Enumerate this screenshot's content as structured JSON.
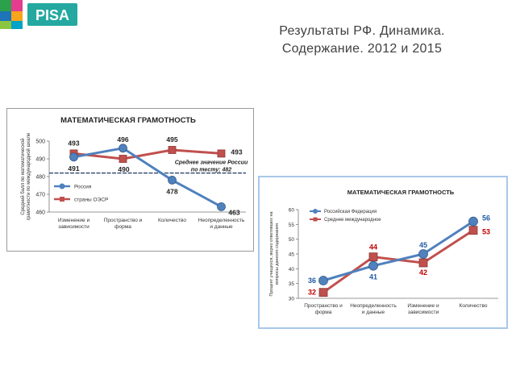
{
  "slide": {
    "title_line1": "Результаты РФ. Динамика.",
    "title_line2": "Содержание. 2012 и 2015",
    "logo_text": "PISA"
  },
  "colors": {
    "blue": "#4f81bd",
    "red": "#c0504d",
    "blue_dark": "#1f5aa6",
    "red_dark": "#c00000"
  },
  "chart_data": [
    {
      "type": "line",
      "title": "МАТЕМАТИЧЕСКАЯ ГРАМОТНОСТЬ",
      "ylabel_line1": "Средний балл по математической",
      "ylabel_line2": "грамотности по международной шкале",
      "categories": [
        [
          "Изменение и",
          "зависимости"
        ],
        [
          "Пространство и",
          "форма"
        ],
        [
          "Количество"
        ],
        [
          "Неопределенность",
          "и данные"
        ]
      ],
      "ylim": [
        460,
        500
      ],
      "yticks": [
        "460",
        "470",
        "480",
        "490",
        "500"
      ],
      "series": [
        {
          "name": "Россия",
          "values": [
            491,
            496,
            478,
            463
          ],
          "labels": [
            "491",
            "496",
            "478",
            "463"
          ]
        },
        {
          "name": "страны ОЭСР",
          "values": [
            493,
            490,
            495,
            493
          ],
          "labels": [
            "493",
            "490",
            "495",
            "493"
          ]
        }
      ],
      "reference": {
        "value": 482,
        "label_line1": "Среднее значение России",
        "label_line2": "по тесту; 482"
      },
      "legend": "left"
    },
    {
      "type": "line",
      "title": "МАТЕМАТИЧЕСКАЯ ГРАМОТНОСТЬ",
      "ylabel_line1": "Процент учащихся, верно ответивших на",
      "ylabel_line2": "вопросы данного содержания",
      "categories": [
        [
          "Пространство и",
          "форма"
        ],
        [
          "Неопределенность",
          "и данные"
        ],
        [
          "Изменение и",
          "зависимости"
        ],
        [
          "Количество"
        ]
      ],
      "ylim": [
        30,
        60
      ],
      "yticks": [
        "30",
        "35",
        "40",
        "45",
        "50",
        "55",
        "60"
      ],
      "series": [
        {
          "name": "Российская Федерация",
          "values": [
            36,
            41,
            45,
            56
          ],
          "labels": [
            "36",
            "41",
            "45",
            "56"
          ]
        },
        {
          "name": "Среднее международное",
          "values": [
            32,
            44,
            42,
            53
          ],
          "labels": [
            "32",
            "44",
            "42",
            "53"
          ]
        }
      ],
      "legend": "top-left"
    }
  ]
}
